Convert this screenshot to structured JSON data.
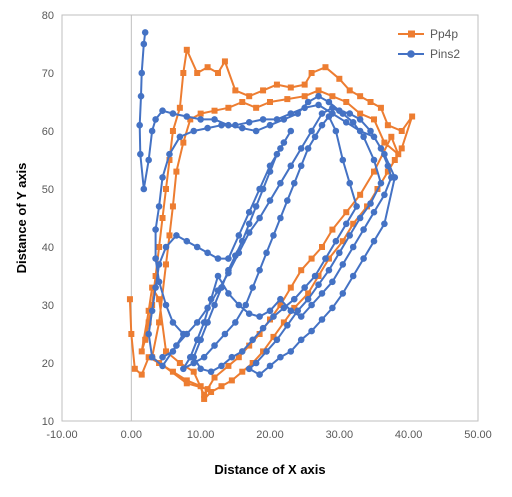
{
  "chart_data": {
    "type": "scatter",
    "title": "",
    "xlabel": "Distance of X axis",
    "ylabel": "Distance of Y axis",
    "xlim": [
      -10,
      50
    ],
    "ylim": [
      10,
      80
    ],
    "xticks": [
      "-10.00",
      "0.00",
      "10.00",
      "20.00",
      "30.00",
      "40.00",
      "50.00"
    ],
    "yticks": [
      "10",
      "20",
      "30",
      "40",
      "50",
      "60",
      "70",
      "80"
    ],
    "grid": false,
    "legend_position": "top-right",
    "series": [
      {
        "name": "Pp4p",
        "color": "#ED7D31",
        "marker": "square",
        "points": [
          [
            -0.2,
            31
          ],
          [
            0,
            25
          ],
          [
            0.5,
            19
          ],
          [
            1.5,
            18
          ],
          [
            2.5,
            21
          ],
          [
            4,
            20
          ],
          [
            6,
            18.5
          ],
          [
            8,
            17
          ],
          [
            10,
            16
          ],
          [
            10.5,
            13.8
          ],
          [
            11.5,
            15
          ],
          [
            13,
            16
          ],
          [
            14.5,
            17
          ],
          [
            16,
            18.5
          ],
          [
            17.5,
            20
          ],
          [
            19,
            22
          ],
          [
            20.5,
            24.5
          ],
          [
            22,
            27
          ],
          [
            23.5,
            29.5
          ],
          [
            25.5,
            32
          ],
          [
            27,
            35
          ],
          [
            28.5,
            38
          ],
          [
            30.5,
            41
          ],
          [
            32,
            44
          ],
          [
            34,
            47
          ],
          [
            35.5,
            50
          ],
          [
            37,
            53
          ],
          [
            38,
            55
          ],
          [
            39,
            57
          ],
          [
            40.5,
            62.5
          ],
          [
            39,
            60
          ],
          [
            37,
            61
          ],
          [
            36,
            64
          ],
          [
            34.5,
            65
          ],
          [
            33,
            66
          ],
          [
            31.5,
            67
          ],
          [
            30,
            69
          ],
          [
            28,
            71
          ],
          [
            26,
            70
          ],
          [
            25,
            68
          ],
          [
            23,
            67.5
          ],
          [
            21,
            68
          ],
          [
            19,
            67
          ],
          [
            17,
            66
          ],
          [
            15,
            67
          ],
          [
            13.5,
            72
          ],
          [
            12.5,
            70
          ],
          [
            11,
            71
          ],
          [
            9.5,
            70
          ],
          [
            8,
            74
          ],
          [
            7.5,
            70
          ],
          [
            7,
            64
          ],
          [
            6,
            60
          ],
          [
            5.5,
            55
          ],
          [
            5,
            50
          ],
          [
            4.5,
            45
          ],
          [
            4,
            40
          ],
          [
            3.5,
            35
          ],
          [
            3,
            30
          ],
          [
            2.5,
            27
          ],
          [
            2,
            24
          ],
          [
            1.5,
            22
          ],
          [
            2.5,
            29
          ],
          [
            3,
            33
          ],
          [
            4,
            31
          ],
          [
            5,
            22
          ],
          [
            7,
            20
          ],
          [
            9,
            18.5
          ],
          [
            10.5,
            14.5
          ],
          [
            12,
            17.5
          ],
          [
            14,
            19.5
          ],
          [
            15.5,
            21
          ],
          [
            17,
            23
          ],
          [
            18.5,
            25
          ],
          [
            20,
            27.5
          ],
          [
            21.5,
            30
          ],
          [
            23,
            33
          ],
          [
            24.5,
            36
          ],
          [
            26,
            38
          ],
          [
            27.5,
            40
          ],
          [
            29,
            43
          ],
          [
            31,
            46
          ],
          [
            33,
            49
          ],
          [
            35,
            53
          ],
          [
            37.5,
            59
          ],
          [
            38.5,
            56
          ],
          [
            36.5,
            58
          ],
          [
            35,
            62
          ],
          [
            33,
            63
          ],
          [
            31,
            65
          ],
          [
            29,
            66
          ],
          [
            27,
            67
          ],
          [
            25,
            66
          ],
          [
            22.5,
            65.5
          ],
          [
            20,
            65
          ],
          [
            18,
            64
          ],
          [
            16,
            65
          ],
          [
            14,
            64
          ],
          [
            12,
            63.5
          ],
          [
            10,
            63
          ],
          [
            8.5,
            62
          ],
          [
            7.5,
            58
          ],
          [
            6.5,
            53
          ],
          [
            6,
            47
          ],
          [
            5.5,
            42
          ],
          [
            5,
            37
          ],
          [
            4,
            27
          ],
          [
            3,
            21
          ],
          [
            8,
            16.5
          ],
          [
            11,
            15.5
          ]
        ]
      },
      {
        "name": "Pins2",
        "color": "#4472C4",
        "marker": "circle",
        "points": [
          [
            2,
            77
          ],
          [
            1.8,
            75
          ],
          [
            1.5,
            70
          ],
          [
            1.4,
            66
          ],
          [
            1.2,
            61
          ],
          [
            1.3,
            56
          ],
          [
            1.8,
            50
          ],
          [
            2.5,
            55
          ],
          [
            3,
            60
          ],
          [
            3.5,
            62
          ],
          [
            4.5,
            63.5
          ],
          [
            6,
            63
          ],
          [
            8,
            62.5
          ],
          [
            10,
            62
          ],
          [
            12,
            62
          ],
          [
            14,
            61
          ],
          [
            16,
            60.5
          ],
          [
            18,
            60
          ],
          [
            20,
            61
          ],
          [
            22,
            62
          ],
          [
            24,
            63
          ],
          [
            25.5,
            65
          ],
          [
            27,
            66
          ],
          [
            28.5,
            65
          ],
          [
            30,
            63.5
          ],
          [
            31.5,
            63
          ],
          [
            33,
            62
          ],
          [
            34.5,
            60
          ],
          [
            36,
            57
          ],
          [
            37,
            54
          ],
          [
            37.5,
            52
          ],
          [
            36.5,
            49
          ],
          [
            35,
            46
          ],
          [
            33.5,
            43
          ],
          [
            32,
            40
          ],
          [
            30.5,
            37
          ],
          [
            29,
            34
          ],
          [
            27.5,
            32
          ],
          [
            26,
            30
          ],
          [
            24.5,
            28
          ],
          [
            23,
            29
          ],
          [
            21.5,
            31
          ],
          [
            20,
            29
          ],
          [
            18.5,
            28
          ],
          [
            17,
            28.5
          ],
          [
            15.5,
            30
          ],
          [
            14,
            32
          ],
          [
            12.5,
            35
          ],
          [
            11.5,
            31
          ],
          [
            10.5,
            27
          ],
          [
            9.5,
            24
          ],
          [
            8.5,
            21
          ],
          [
            7.5,
            19
          ],
          [
            9,
            20
          ],
          [
            10.5,
            21
          ],
          [
            12,
            23
          ],
          [
            13.5,
            25
          ],
          [
            15,
            27
          ],
          [
            16.5,
            30
          ],
          [
            17.5,
            33
          ],
          [
            18.5,
            36
          ],
          [
            19.5,
            39
          ],
          [
            20.5,
            42
          ],
          [
            21.5,
            45
          ],
          [
            22.5,
            48
          ],
          [
            23.5,
            51
          ],
          [
            24.5,
            54
          ],
          [
            25.5,
            57
          ],
          [
            26.5,
            59
          ],
          [
            27.5,
            61
          ],
          [
            28.5,
            62.5
          ],
          [
            29.5,
            60
          ],
          [
            30.5,
            55
          ],
          [
            31.5,
            51
          ],
          [
            32.5,
            47
          ],
          [
            31,
            44
          ],
          [
            29.5,
            41
          ],
          [
            28,
            38
          ],
          [
            26.5,
            35
          ],
          [
            25,
            33
          ],
          [
            23.5,
            31
          ],
          [
            22,
            29.5
          ],
          [
            20.5,
            28
          ],
          [
            19,
            26
          ],
          [
            17.5,
            24
          ],
          [
            16,
            22
          ],
          [
            14.5,
            21
          ],
          [
            13,
            19.5
          ],
          [
            11.5,
            18.5
          ],
          [
            10,
            19
          ],
          [
            9,
            21
          ],
          [
            10,
            24
          ],
          [
            11,
            27
          ],
          [
            12,
            30
          ],
          [
            13,
            33
          ],
          [
            14,
            36
          ],
          [
            15,
            38.5
          ],
          [
            16,
            41
          ],
          [
            17,
            44
          ],
          [
            18,
            47
          ],
          [
            19,
            50
          ],
          [
            20,
            53
          ],
          [
            21,
            56
          ],
          [
            22,
            58
          ],
          [
            23,
            60
          ],
          [
            21.5,
            57
          ],
          [
            20,
            54
          ],
          [
            18.5,
            50
          ],
          [
            17,
            46
          ],
          [
            15.5,
            42
          ],
          [
            14,
            38
          ],
          [
            12.5,
            38
          ],
          [
            11,
            39
          ],
          [
            9.5,
            40
          ],
          [
            8,
            41
          ],
          [
            6.5,
            42
          ],
          [
            5,
            40
          ],
          [
            4,
            37
          ],
          [
            3.5,
            33
          ],
          [
            3,
            29
          ],
          [
            2.5,
            25
          ],
          [
            3,
            21
          ],
          [
            4.5,
            19.5
          ],
          [
            6.5,
            23
          ],
          [
            8,
            25
          ],
          [
            9.5,
            27
          ],
          [
            11,
            29.5
          ],
          [
            12.5,
            32.5
          ],
          [
            14,
            35.5
          ],
          [
            15.5,
            39
          ],
          [
            17,
            42.5
          ],
          [
            18.5,
            45
          ],
          [
            20,
            48
          ],
          [
            21.5,
            51
          ],
          [
            23,
            54
          ],
          [
            24.5,
            57
          ],
          [
            26,
            60
          ],
          [
            27.5,
            63
          ],
          [
            29,
            64
          ],
          [
            30.5,
            63
          ],
          [
            32,
            61.5
          ],
          [
            33.5,
            59
          ],
          [
            35,
            55
          ],
          [
            36,
            51
          ],
          [
            34.5,
            47.5
          ],
          [
            33,
            45
          ],
          [
            31.5,
            42
          ],
          [
            30,
            39
          ],
          [
            28.5,
            36
          ],
          [
            27,
            33.5
          ],
          [
            25.5,
            31
          ],
          [
            24,
            29
          ],
          [
            22.5,
            26.5
          ],
          [
            21,
            24
          ],
          [
            19.5,
            22
          ],
          [
            18,
            20
          ],
          [
            17,
            19
          ],
          [
            18.5,
            18
          ],
          [
            20,
            19.5
          ],
          [
            21.5,
            21
          ],
          [
            23,
            22
          ],
          [
            24.5,
            24
          ],
          [
            26,
            25.5
          ],
          [
            27.5,
            27.5
          ],
          [
            29,
            29.5
          ],
          [
            30.5,
            32
          ],
          [
            32,
            35
          ],
          [
            33.5,
            38
          ],
          [
            35,
            41
          ],
          [
            36.5,
            44
          ],
          [
            38,
            52
          ],
          [
            36.5,
            56
          ],
          [
            35,
            59
          ],
          [
            33,
            60
          ],
          [
            31,
            61.5
          ],
          [
            29,
            63
          ],
          [
            27,
            64.5
          ],
          [
            25,
            64
          ],
          [
            23,
            63
          ],
          [
            21,
            62
          ],
          [
            19,
            62
          ],
          [
            17,
            61.5
          ],
          [
            15,
            61
          ],
          [
            13,
            61
          ],
          [
            11,
            60.5
          ],
          [
            9,
            60
          ],
          [
            7,
            59
          ],
          [
            5.5,
            56
          ],
          [
            4.5,
            52
          ],
          [
            4,
            47
          ],
          [
            3.5,
            43
          ],
          [
            3.5,
            38
          ],
          [
            4,
            34
          ],
          [
            5,
            30
          ],
          [
            6,
            27
          ],
          [
            7.5,
            25
          ],
          [
            6,
            22
          ],
          [
            4.5,
            21
          ]
        ]
      }
    ]
  }
}
